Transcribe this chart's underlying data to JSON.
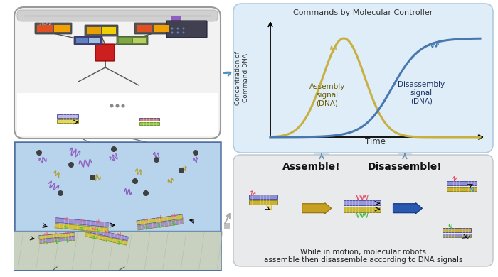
{
  "graph_panel": {
    "title": "Commands by Molecular Controller",
    "xlabel": "Time",
    "ylabel": "Concentration of\nCommand DNA",
    "bg_color": "#deedf8",
    "assembly_label": "Assembly\nsignal\n(DNA)",
    "disassembly_label": "Disassembly\nsignal\n(DNA)",
    "assembly_color": "#c8b040",
    "disassembly_color": "#4878b0"
  },
  "assemble_label": "Assemble!",
  "disassemble_label": "Disassemble!",
  "bottom_text1": "While in motion, molecular robots",
  "bottom_text2": "assemble then disassemble according to DNA signals",
  "bottom_panel_bg": "#e8eaec",
  "arrow_assemble_color": "#c8a020",
  "arrow_disassemble_color": "#2858a8",
  "controller_bg": "#f0f0f0",
  "controller_border": "#888888",
  "aquarium_bg": "#c0d8ee",
  "aquarium_floor": "#c8d0c0"
}
